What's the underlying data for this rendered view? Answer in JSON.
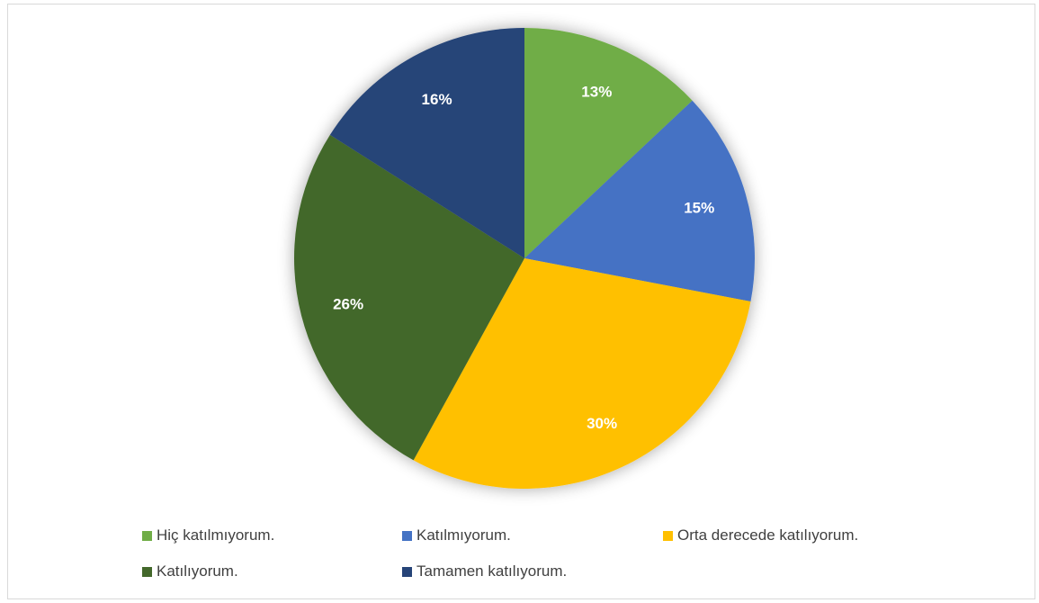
{
  "chart_data": {
    "type": "pie",
    "title": "",
    "slices": [
      {
        "label": "Hiç katılmıyorum.",
        "value": 13,
        "display": "13%",
        "color": "#70ad47"
      },
      {
        "label": "Katılmıyorum.",
        "value": 15,
        "display": "15%",
        "color": "#4472c4"
      },
      {
        "label": "Orta derecede katılıyorum.",
        "value": 30,
        "display": "30%",
        "color": "#ffc000"
      },
      {
        "label": "Katılıyorum.",
        "value": 26,
        "display": "26%",
        "color": "#43682b"
      },
      {
        "label": "Tamamen katılıyorum.",
        "value": 16,
        "display": "16%",
        "color": "#264478"
      }
    ],
    "legend_position": "bottom"
  }
}
